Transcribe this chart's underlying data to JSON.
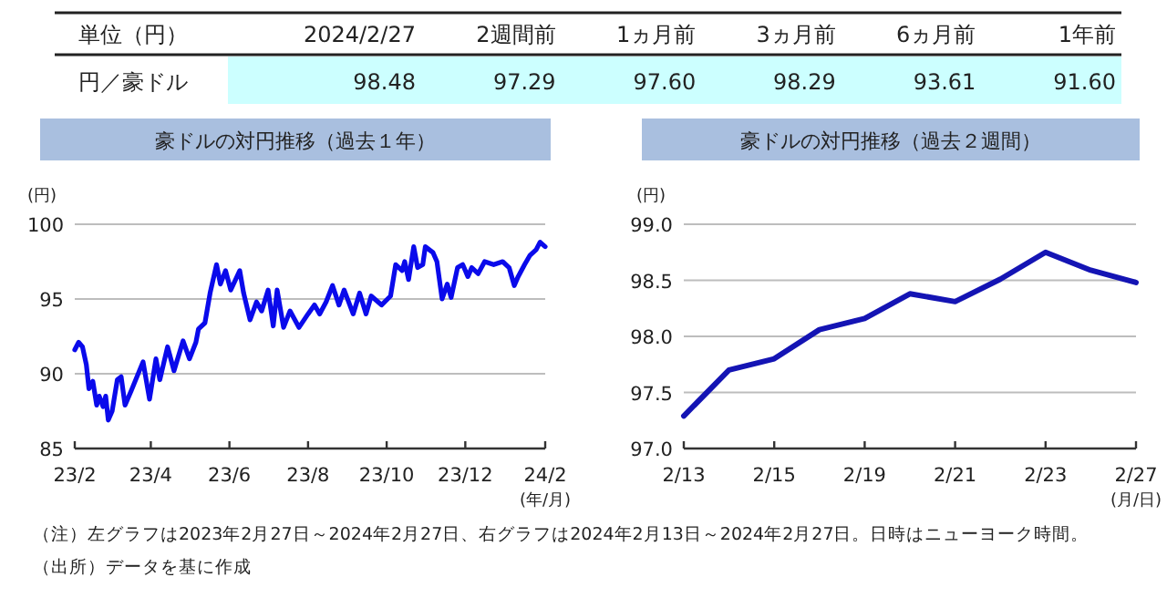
{
  "chart_data": [
    {
      "type": "other",
      "title": "単位（円）",
      "categories": [
        "2024/2/27",
        "2週間前",
        "1ヵ月前",
        "3ヵ月前",
        "6ヵ月前",
        "1年前"
      ],
      "series": [
        {
          "name": "円／豪ドル",
          "color": "#ccffff",
          "values": [
            98.48,
            97.29,
            97.6,
            98.29,
            93.61,
            91.6
          ],
          "value_labels": [
            "98.48",
            "97.29",
            "97.60",
            "98.29",
            "93.61",
            "91.60"
          ]
        }
      ]
    },
    {
      "type": "line",
      "title": "豪ドルの対円推移（過去１年）",
      "ylabel": "(円)",
      "xlabel": "(年/月)",
      "x": [
        "2023-02-27",
        "2023-03-02",
        "2023-03-05",
        "2023-03-08",
        "2023-03-10",
        "2023-03-13",
        "2023-03-16",
        "2023-03-18",
        "2023-03-21",
        "2023-03-23",
        "2023-03-25",
        "2023-03-28",
        "2023-04-01",
        "2023-04-04",
        "2023-04-07",
        "2023-04-12",
        "2023-04-21",
        "2023-04-26",
        "2023-05-01",
        "2023-05-04",
        "2023-05-10",
        "2023-05-15",
        "2023-05-22",
        "2023-05-27",
        "2023-06-01",
        "2023-06-03",
        "2023-06-08",
        "2023-06-12",
        "2023-06-17",
        "2023-06-20",
        "2023-06-24",
        "2023-06-28",
        "2023-07-05",
        "2023-07-08",
        "2023-07-13",
        "2023-07-18",
        "2023-07-22",
        "2023-07-27",
        "2023-07-31",
        "2023-08-03",
        "2023-08-08",
        "2023-08-13",
        "2023-08-20",
        "2023-08-27",
        "2023-09-01",
        "2023-09-05",
        "2023-09-10",
        "2023-09-15",
        "2023-09-20",
        "2023-09-24",
        "2023-10-01",
        "2023-10-06",
        "2023-10-11",
        "2023-10-15",
        "2023-10-23",
        "2023-10-30",
        "2023-11-03",
        "2023-11-08",
        "2023-11-10",
        "2023-11-13",
        "2023-11-17",
        "2023-11-20",
        "2023-11-24",
        "2023-11-26",
        "2023-12-02",
        "2023-12-05",
        "2023-12-09",
        "2023-12-13",
        "2023-12-16",
        "2023-12-21",
        "2023-12-25",
        "2023-12-29",
        "2024-01-01",
        "2024-01-06",
        "2024-01-11",
        "2024-01-18",
        "2024-01-25",
        "2024-01-30",
        "2024-02-03",
        "2024-02-06",
        "2024-02-11",
        "2024-02-15",
        "2024-02-20",
        "2024-02-23",
        "2024-02-27"
      ],
      "series": [
        {
          "color": "#0a0aeb",
          "values": [
            91.6,
            92.1,
            91.8,
            90.6,
            89.0,
            89.5,
            87.9,
            88.5,
            87.8,
            88.5,
            86.9,
            87.5,
            89.6,
            89.8,
            87.9,
            88.9,
            90.8,
            88.3,
            91.0,
            89.6,
            91.8,
            90.2,
            92.2,
            91.0,
            92.1,
            93.0,
            93.4,
            95.4,
            97.3,
            96.0,
            96.9,
            95.6,
            96.9,
            95.4,
            93.6,
            94.8,
            94.2,
            95.6,
            93.2,
            95.6,
            93.1,
            94.2,
            93.1,
            94.0,
            94.6,
            94.0,
            94.8,
            95.9,
            94.6,
            95.6,
            94.0,
            95.4,
            94.0,
            95.2,
            94.6,
            95.2,
            97.3,
            96.9,
            97.5,
            96.3,
            98.5,
            97.1,
            97.3,
            98.5,
            98.1,
            97.5,
            95.0,
            96.0,
            95.1,
            97.1,
            97.3,
            96.5,
            97.1,
            96.7,
            97.5,
            97.3,
            97.5,
            97.1,
            95.9,
            96.5,
            97.3,
            97.9,
            98.3,
            98.8,
            98.5
          ]
        }
      ],
      "xlim": [
        "2023-02-27",
        "2024-02-27"
      ],
      "xticks": [
        {
          "value": "2023-02-27",
          "label": "23/2"
        },
        {
          "value": "2023-04-27",
          "label": "23/4"
        },
        {
          "value": "2023-06-27",
          "label": "23/6"
        },
        {
          "value": "2023-08-27",
          "label": "23/8"
        },
        {
          "value": "2023-10-27",
          "label": "23/10"
        },
        {
          "value": "2023-12-27",
          "label": "23/12"
        },
        {
          "value": "2024-02-27",
          "label": "24/2"
        }
      ],
      "ylim": [
        85,
        100
      ],
      "yticks": [
        85,
        90,
        95,
        100
      ],
      "grid": "y",
      "marker": "none",
      "line_style": "solid"
    },
    {
      "type": "line",
      "title": "豪ドルの対円推移（過去２週間）",
      "ylabel": "(円)",
      "xlabel": "(月/日)",
      "categories": [
        "2/13",
        null,
        "2/15",
        null,
        "2/19",
        null,
        "2/21",
        null,
        "2/23",
        null,
        "2/27"
      ],
      "series": [
        {
          "color": "#1414b4",
          "values": [
            97.29,
            97.7,
            97.8,
            98.06,
            98.16,
            98.38,
            98.31,
            98.51,
            98.75,
            98.59,
            98.48
          ]
        }
      ],
      "ylim": [
        97.0,
        99.0
      ],
      "yticks": [
        {
          "value": 97.0,
          "label": "97.0"
        },
        {
          "value": 97.5,
          "label": "97.5"
        },
        {
          "value": 98.0,
          "label": "98.0"
        },
        {
          "value": 98.5,
          "label": "98.5"
        },
        {
          "value": 99.0,
          "label": "99.0"
        }
      ],
      "grid": "y",
      "marker": "none",
      "line_style": "solid",
      "annotations": [
        "（注）左グラフは2023年2月27日～2024年2月27日、右グラフは2024年2月13日～2024年2月27日。日時はニューヨーク時間。",
        "（出所）データを基に作成"
      ]
    }
  ]
}
